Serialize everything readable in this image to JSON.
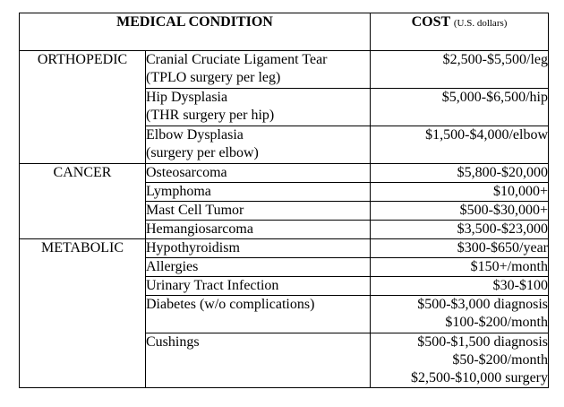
{
  "header": {
    "condition_label": "MEDICAL CONDITION",
    "cost_label": "COST",
    "cost_sublabel": "(U.S. dollars)"
  },
  "categories": [
    {
      "name": "ORTHOPEDIC",
      "rows": [
        {
          "condition": [
            "Cranial Cruciate Ligament Tear",
            "(TPLO surgery per leg)"
          ],
          "cost": [
            "$2,500-$5,500/leg"
          ]
        },
        {
          "condition": [
            "Hip Dysplasia",
            "(THR surgery per hip)"
          ],
          "cost": [
            "$5,000-$6,500/hip"
          ]
        },
        {
          "condition": [
            "Elbow Dysplasia",
            "(surgery per elbow)"
          ],
          "cost": [
            "$1,500-$4,000/elbow"
          ]
        }
      ]
    },
    {
      "name": "CANCER",
      "rows": [
        {
          "condition": [
            "Osteosarcoma"
          ],
          "cost": [
            "$5,800-$20,000"
          ]
        },
        {
          "condition": [
            "Lymphoma"
          ],
          "cost": [
            "$10,000+"
          ]
        },
        {
          "condition": [
            "Mast Cell Tumor"
          ],
          "cost": [
            "$500-$30,000+"
          ]
        },
        {
          "condition": [
            "Hemangiosarcoma"
          ],
          "cost": [
            "$3,500-$23,000"
          ]
        }
      ]
    },
    {
      "name": "METABOLIC",
      "rows": [
        {
          "condition": [
            "Hypothyroidism"
          ],
          "cost": [
            "$300-$650/year"
          ]
        },
        {
          "condition": [
            "Allergies"
          ],
          "cost": [
            "$150+/month"
          ]
        },
        {
          "condition": [
            "Urinary Tract Infection"
          ],
          "cost": [
            "$30-$100"
          ]
        },
        {
          "condition": [
            "Diabetes (w/o complications)"
          ],
          "cost": [
            "$500-$3,000 diagnosis",
            "$100-$200/month"
          ]
        },
        {
          "condition": [
            "Cushings"
          ],
          "cost": [
            "$500-$1,500 diagnosis",
            "$50-$200/month",
            "$2,500-$10,000 surgery"
          ]
        }
      ]
    }
  ]
}
